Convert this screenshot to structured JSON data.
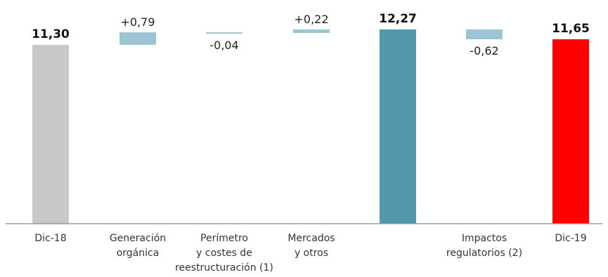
{
  "chart_data": {
    "type": "bar",
    "subtype": "waterfall",
    "categories": [
      [
        "Dic-18"
      ],
      [
        "Generación",
        "orgánica"
      ],
      [
        "Perímetro",
        "y costes de",
        "reestructuración (1)"
      ],
      [
        "Mercados",
        "y otros"
      ],
      [
        ""
      ],
      [
        "Impactos",
        "regulatorios (2)"
      ],
      [
        "Dic-19"
      ]
    ],
    "bars": [
      {
        "kind": "total",
        "value": 11.3,
        "label": "11,30",
        "color": "#c8c8c8"
      },
      {
        "kind": "delta",
        "value": 0.79,
        "label": "+0,79",
        "color": "#9dc4d4"
      },
      {
        "kind": "delta",
        "value": -0.04,
        "label": "-0,04",
        "color": "#9dc4d4"
      },
      {
        "kind": "delta",
        "value": 0.22,
        "label": "+0,22",
        "color": "#9dc4d4"
      },
      {
        "kind": "total",
        "value": 12.27,
        "label": "12,27",
        "color": "#5497ac"
      },
      {
        "kind": "delta",
        "value": -0.62,
        "label": "-0,62",
        "color": "#9dc4d4"
      },
      {
        "kind": "total",
        "value": 11.65,
        "label": "11,65",
        "color": "#ff0000"
      }
    ],
    "axis_color": "#8aa0ac",
    "grid": false,
    "legend": "none"
  }
}
